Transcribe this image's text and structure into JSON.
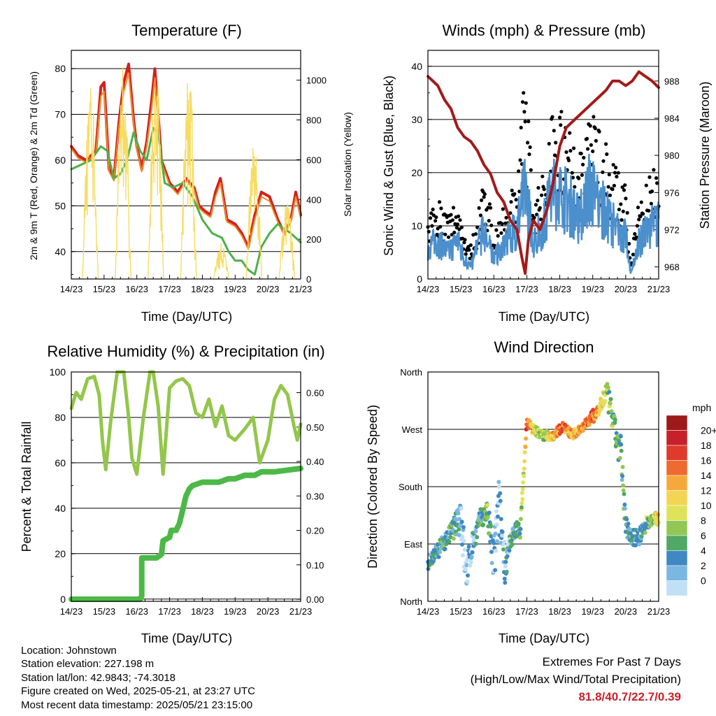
{
  "colors": {
    "temp_2m": "#d42020",
    "temp_9m": "#f08a24",
    "dewpoint": "#4db04a",
    "solar": "#f7dc62",
    "wind": "#4b8fcd",
    "gust": "#000000",
    "pressure": "#a31a1a",
    "rh": "#93c64b",
    "precip": "#4cb848",
    "extremes": "#c8232c"
  },
  "chart_data": [
    {
      "id": "temperature",
      "type": "line",
      "title": "Temperature (F)",
      "xlabel": "Time (Day/UTC)",
      "ylabel": "2m & 9m T (Red, Orange) & 2m Td (Green)",
      "ylabel_right": "Solar Insolation (Yellow)",
      "x_ticks": [
        "14/23",
        "15/23",
        "16/23",
        "17/23",
        "18/23",
        "19/23",
        "20/23",
        "21/23"
      ],
      "xlim": [
        0,
        7
      ],
      "ylim": [
        34,
        84
      ],
      "y_ticks": [
        40,
        50,
        60,
        70,
        80
      ],
      "ylim_right": [
        0,
        1150
      ],
      "y_ticks_right": [
        0,
        200,
        400,
        600,
        800,
        1000
      ],
      "grid": "horizontal",
      "series": [
        {
          "key": "temp_2m",
          "axis": "left",
          "width": 4,
          "x": [
            0,
            0.2,
            0.45,
            0.75,
            0.9,
            1.0,
            1.15,
            1.3,
            1.45,
            1.6,
            1.75,
            1.9,
            2.0,
            2.15,
            2.3,
            2.45,
            2.55,
            2.75,
            3.0,
            3.25,
            3.5,
            3.75,
            3.9,
            4.05,
            4.25,
            4.4,
            4.55,
            4.75,
            5.0,
            5.2,
            5.4,
            5.6,
            5.8,
            6.05,
            6.3,
            6.5,
            6.7,
            6.85,
            7.0
          ],
          "y": [
            63,
            61,
            60,
            62,
            76,
            77,
            58,
            56,
            68,
            77,
            81,
            69,
            63,
            58,
            64,
            73,
            80,
            60,
            55,
            53,
            56,
            54,
            50,
            49,
            48,
            53,
            56,
            47,
            46,
            44,
            41,
            48,
            53,
            52,
            47,
            44,
            47,
            53,
            48
          ]
        },
        {
          "key": "temp_9m",
          "axis": "left",
          "width": 2,
          "x": [
            0,
            0.2,
            0.45,
            0.75,
            0.9,
            1.0,
            1.15,
            1.3,
            1.45,
            1.6,
            1.75,
            1.9,
            2.0,
            2.15,
            2.3,
            2.45,
            2.55,
            2.75,
            3.0,
            3.25,
            3.5,
            3.75,
            3.9,
            4.05,
            4.25,
            4.4,
            4.55,
            4.75,
            5.0,
            5.2,
            5.4,
            5.6,
            5.8,
            6.05,
            6.3,
            6.5,
            6.7,
            6.85,
            7.0
          ],
          "y": [
            62.5,
            60.5,
            59.5,
            61.5,
            74,
            75,
            57.5,
            55.5,
            67,
            75,
            79,
            68,
            62.5,
            57.5,
            63,
            71,
            78,
            59.5,
            54.5,
            52.5,
            55.5,
            53.5,
            49.5,
            48.5,
            47.5,
            52,
            55,
            46.5,
            45.5,
            43.5,
            40.5,
            47,
            52,
            51,
            46.5,
            43.5,
            46.5,
            52,
            47.5
          ]
        },
        {
          "key": "dewpoint",
          "axis": "left",
          "width": 3,
          "x": [
            0,
            0.3,
            0.6,
            0.9,
            1.1,
            1.3,
            1.5,
            1.7,
            1.9,
            2.1,
            2.3,
            2.5,
            2.65,
            2.85,
            3.1,
            3.4,
            3.7,
            4.0,
            4.3,
            4.6,
            4.8,
            5.0,
            5.2,
            5.4,
            5.6,
            5.8,
            6.05,
            6.3,
            6.5,
            6.7,
            6.85,
            7.0
          ],
          "y": [
            58,
            59,
            60,
            63,
            62,
            56,
            57,
            60,
            66,
            62,
            60,
            67,
            66,
            55,
            54,
            55,
            52,
            47,
            44,
            43,
            40,
            38,
            38,
            36,
            35,
            41,
            44,
            46,
            45,
            44,
            43,
            42
          ]
        },
        {
          "key": "solar",
          "axis": "right",
          "width": 1.4,
          "mode": "spikes",
          "days": [
            0.58,
            1.58,
            2.58,
            3.58,
            4.58,
            5.58,
            6.58
          ],
          "peaks": [
            1060,
            1130,
            1100,
            1140,
            180,
            720,
            420
          ],
          "halfwidth": 0.24
        }
      ]
    },
    {
      "id": "winds",
      "type": "line",
      "title": "Winds (mph) & Pressure (mb)",
      "xlabel": "Time (Day/UTC)",
      "ylabel": "Sonic Wind & Gust (Blue, Black)",
      "ylabel_right": "Station Pressure (Maroon)",
      "x_ticks": [
        "14/23",
        "15/23",
        "16/23",
        "17/23",
        "18/23",
        "19/23",
        "20/23",
        "21/23"
      ],
      "xlim": [
        0,
        7
      ],
      "ylim": [
        0,
        43
      ],
      "y_ticks": [
        0,
        10,
        20,
        30,
        40
      ],
      "ylim_right": [
        966.7,
        991.3
      ],
      "y_ticks_right": [
        968,
        972,
        976,
        980,
        984,
        988
      ],
      "grid": "horizontal",
      "wind_envelope": {
        "x": [
          0,
          0.3,
          0.6,
          0.9,
          1.1,
          1.3,
          1.5,
          1.7,
          2.0,
          2.3,
          2.5,
          2.7,
          2.95,
          3.2,
          3.5,
          3.75,
          4.0,
          4.3,
          4.6,
          4.9,
          5.2,
          5.5,
          5.8,
          6.0,
          6.15,
          6.4,
          6.7,
          7.0
        ],
        "wind": [
          6,
          7,
          5,
          7,
          4,
          2,
          6,
          9,
          4,
          6,
          8,
          10,
          17,
          7,
          10,
          16,
          16,
          14,
          11,
          17,
          14,
          11,
          9,
          8,
          1,
          7,
          9,
          11
        ],
        "gust": [
          10,
          12,
          9,
          12,
          7,
          5,
          9,
          16,
          7,
          10,
          13,
          15,
          30,
          12,
          15,
          25,
          25,
          22,
          17,
          27,
          22,
          18,
          15,
          13,
          2,
          12,
          14,
          18
        ]
      },
      "series": [
        {
          "key": "pressure",
          "axis": "right",
          "width": 4,
          "x": [
            0,
            0.3,
            0.5,
            0.7,
            0.9,
            1.1,
            1.3,
            1.5,
            1.7,
            1.9,
            2.1,
            2.3,
            2.5,
            2.7,
            2.85,
            2.95,
            3.05,
            3.2,
            3.4,
            3.6,
            3.8,
            4.0,
            4.2,
            4.5,
            4.8,
            5.1,
            5.4,
            5.6,
            5.8,
            6.0,
            6.2,
            6.4,
            6.6,
            6.8,
            7.0
          ],
          "y": [
            988.5,
            987.5,
            986,
            985,
            983,
            982,
            981.5,
            980.5,
            979,
            978,
            976,
            975,
            973,
            972,
            969,
            967.3,
            971,
            973,
            972,
            974,
            977,
            981,
            983,
            984,
            985,
            986,
            987,
            988,
            988,
            987.5,
            988,
            989,
            988.5,
            988,
            987.3
          ]
        }
      ]
    },
    {
      "id": "humidity",
      "type": "line",
      "title": "Relative Humidity (%) & Precipitation (in)",
      "xlabel": "Time (Day/UTC)",
      "ylabel": "Percent & Total Rainfall",
      "x_ticks": [
        "14/23",
        "15/23",
        "16/23",
        "17/23",
        "18/23",
        "19/23",
        "20/23",
        "21/23"
      ],
      "xlim": [
        0,
        7
      ],
      "ylim": [
        -1,
        100
      ],
      "y_ticks": [
        0,
        20,
        40,
        60,
        80,
        100
      ],
      "ylim_right": [
        -0.006,
        0.66
      ],
      "y_ticks_right": [
        "0.00",
        "0.10",
        "0.20",
        "0.30",
        "0.40",
        "0.50",
        "0.60"
      ],
      "grid": "horizontal",
      "series": [
        {
          "key": "rh",
          "axis": "left",
          "width": 5,
          "x": [
            0,
            0.15,
            0.3,
            0.5,
            0.7,
            0.85,
            0.95,
            1.05,
            1.2,
            1.4,
            1.6,
            1.75,
            1.85,
            2.0,
            2.2,
            2.4,
            2.5,
            2.65,
            2.8,
            3.0,
            3.2,
            3.4,
            3.6,
            3.8,
            4.0,
            4.2,
            4.4,
            4.6,
            4.8,
            5.0,
            5.3,
            5.55,
            5.75,
            6.0,
            6.2,
            6.4,
            6.6,
            6.8,
            6.9,
            7.0
          ],
          "y": [
            84,
            91,
            88,
            97,
            98,
            90,
            70,
            57,
            78,
            100,
            100,
            80,
            62,
            55,
            80,
            100,
            100,
            85,
            55,
            93,
            96,
            97,
            94,
            82,
            80,
            88,
            76,
            85,
            72,
            70,
            75,
            80,
            60,
            70,
            88,
            94,
            90,
            76,
            70,
            77
          ]
        },
        {
          "key": "precip",
          "axis": "right",
          "width": 8,
          "x": [
            0,
            2.1,
            2.15,
            2.15,
            2.6,
            2.75,
            2.8,
            3.0,
            3.05,
            3.2,
            3.3,
            3.4,
            3.5,
            3.6,
            3.7,
            4.0,
            4.2,
            4.5,
            4.8,
            5.0,
            5.3,
            5.6,
            5.8,
            6.2,
            7.0
          ],
          "y": [
            0,
            0,
            0.01,
            0.12,
            0.12,
            0.13,
            0.17,
            0.18,
            0.2,
            0.2,
            0.22,
            0.26,
            0.3,
            0.32,
            0.33,
            0.34,
            0.34,
            0.34,
            0.35,
            0.35,
            0.36,
            0.36,
            0.37,
            0.37,
            0.38
          ]
        }
      ]
    },
    {
      "id": "wind_direction",
      "type": "scatter",
      "title": "Wind Direction",
      "xlabel": "Time (Day/UTC)",
      "ylabel": "Direction (Colored By Speed)",
      "x_ticks": [
        "14/23",
        "15/23",
        "16/23",
        "17/23",
        "18/23",
        "19/23",
        "20/23",
        "21/23"
      ],
      "xlim": [
        0,
        7
      ],
      "ylim": [
        0,
        360
      ],
      "y_ticks": [
        "North",
        "East",
        "South",
        "West",
        "North"
      ],
      "grid": "horizontal",
      "direction_track": {
        "x": [
          0,
          0.3,
          0.6,
          0.9,
          1.0,
          1.15,
          1.35,
          1.6,
          1.8,
          2.0,
          2.15,
          2.35,
          2.5,
          2.65,
          2.8,
          3.0,
          3.2,
          3.5,
          3.8,
          4.1,
          4.4,
          4.7,
          5.0,
          5.2,
          5.4,
          5.55,
          5.7,
          5.85,
          6.0,
          6.2,
          6.4,
          6.6,
          6.8,
          7.0
        ],
        "dir": [
          60,
          80,
          100,
          125,
          140,
          40,
          90,
          130,
          140,
          60,
          150,
          55,
          90,
          115,
          110,
          280,
          270,
          260,
          260,
          275,
          260,
          275,
          290,
          300,
          330,
          300,
          260,
          230,
          120,
          100,
          100,
          120,
          130,
          130
        ],
        "speed": [
          4,
          5,
          6,
          5,
          4,
          2,
          3,
          6,
          8,
          3,
          2,
          4,
          4,
          6,
          7,
          18,
          11,
          9,
          14,
          18,
          13,
          16,
          18,
          14,
          9,
          8,
          7,
          6,
          6,
          5,
          5,
          7,
          8,
          12
        ],
        "spread": [
          20,
          25,
          25,
          40,
          80,
          60,
          40,
          30,
          30,
          90,
          90,
          60,
          30,
          30,
          20,
          20,
          15,
          15,
          15,
          15,
          15,
          15,
          20,
          20,
          40,
          40,
          40,
          70,
          30,
          30,
          25,
          25,
          20,
          20
        ]
      },
      "colorbar": {
        "unit": "mph",
        "labels": [
          "20+",
          "18",
          "16",
          "14",
          "12",
          "10",
          "8",
          "6",
          "4",
          "2",
          "0"
        ],
        "colors": [
          "#9e1a1a",
          "#c8202a",
          "#e03a2c",
          "#ef6a2e",
          "#f6a93b",
          "#f4d553",
          "#dfe35a",
          "#92c755",
          "#4fa863",
          "#3f88c3",
          "#7ab7e3",
          "#bfe0f5"
        ]
      }
    }
  ],
  "info": {
    "location": "Location: Johnstown",
    "elevation": "Station elevation: 227.198 m",
    "latlon": "Station lat/lon: 42.9843; -74.3018",
    "created": "Figure created on Wed, 2025-05-21, at 23:27 UTC",
    "recent": "Most recent data timestamp: 2025/05/21 23:15:00"
  },
  "extremes": {
    "heading": "Extremes For Past 7 Days",
    "subheading": "(High/Low/Max Wind/Total Precipitation)",
    "values": "81.8/40.7/22.7/0.39"
  }
}
